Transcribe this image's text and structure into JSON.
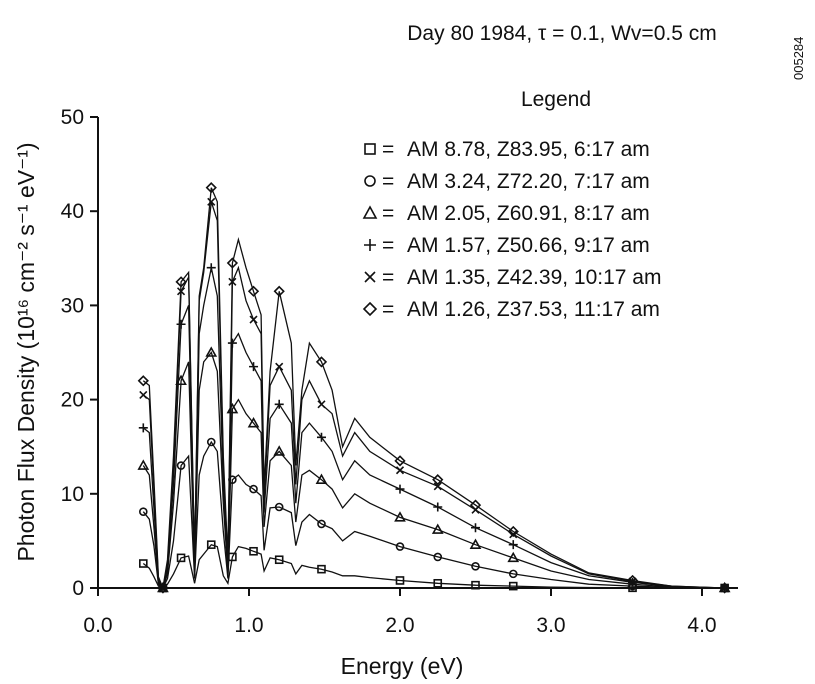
{
  "chart_data": {
    "type": "line",
    "title": "Day 80 1984, τ  =  0.1, Wv=0.5 cm",
    "xlabel": "Energy (eV)",
    "ylabel": "Photon Flux Density (10¹⁶ cm⁻² s⁻¹ eV⁻¹)",
    "xlim": [
      0,
      4.2
    ],
    "ylim": [
      0,
      50
    ],
    "x_ticks": [
      0.0,
      1.0,
      2.0,
      3.0,
      4.0
    ],
    "x_tick_labels": [
      "0.0",
      "1.0",
      "2.0",
      "3.0",
      "4.0"
    ],
    "y_ticks": [
      0,
      10,
      20,
      30,
      40,
      50
    ],
    "y_tick_labels": [
      "0",
      "10",
      "20",
      "30",
      "40",
      "50"
    ],
    "grid": false,
    "legend_title": "Legend",
    "legend_position": "top-right",
    "series": [
      {
        "name": "AM 8.78, Z83.95, 6:17 am",
        "marker": "square",
        "marker_symbol": "□",
        "x": [
          0.3,
          0.34,
          0.37,
          0.4,
          0.43,
          0.46,
          0.5,
          0.55,
          0.6,
          0.64,
          0.67,
          0.7,
          0.75,
          0.79,
          0.83,
          0.86,
          0.89,
          0.93,
          0.98,
          1.03,
          1.08,
          1.1,
          1.14,
          1.2,
          1.28,
          1.31,
          1.35,
          1.4,
          1.48,
          1.55,
          1.62,
          1.7,
          1.8,
          2.0,
          2.25,
          2.5,
          2.75,
          3.0,
          3.25,
          3.54,
          3.8,
          4.15
        ],
        "y": [
          2.6,
          2.1,
          1.2,
          0.2,
          0.0,
          0.4,
          1.5,
          3.2,
          3.4,
          0.5,
          3.0,
          3.6,
          4.6,
          4.4,
          1.3,
          0.5,
          3.3,
          4.4,
          4.2,
          3.9,
          3.6,
          1.8,
          3.2,
          3.0,
          2.6,
          1.5,
          2.4,
          2.2,
          2.0,
          1.7,
          1.3,
          1.3,
          1.1,
          0.8,
          0.5,
          0.3,
          0.2,
          0.1,
          0.05,
          0.02,
          0.01,
          0.0
        ]
      },
      {
        "name": "AM 3.24, Z72.20, 7:17 am",
        "marker": "circle",
        "marker_symbol": "○",
        "x": [
          0.3,
          0.34,
          0.37,
          0.4,
          0.43,
          0.46,
          0.5,
          0.55,
          0.6,
          0.64,
          0.67,
          0.7,
          0.75,
          0.79,
          0.83,
          0.86,
          0.89,
          0.93,
          0.98,
          1.03,
          1.08,
          1.1,
          1.14,
          1.2,
          1.28,
          1.31,
          1.35,
          1.4,
          1.48,
          1.55,
          1.62,
          1.7,
          1.8,
          2.0,
          2.25,
          2.5,
          2.75,
          3.0,
          3.25,
          3.54,
          3.8,
          4.15
        ],
        "y": [
          8.1,
          7.3,
          4.5,
          0.4,
          0.0,
          1.0,
          5.0,
          13.0,
          14.0,
          1.0,
          12.0,
          14.0,
          15.5,
          14.5,
          6.0,
          1.0,
          11.5,
          12.0,
          11.0,
          10.5,
          9.8,
          4.0,
          8.5,
          8.6,
          8.0,
          4.5,
          7.0,
          7.8,
          6.8,
          6.3,
          5.0,
          6.0,
          5.5,
          4.4,
          3.3,
          2.3,
          1.5,
          0.9,
          0.4,
          0.2,
          0.05,
          0.0
        ]
      },
      {
        "name": "AM 2.05, Z60.91, 8:17 am",
        "marker": "triangle",
        "marker_symbol": "△",
        "x": [
          0.3,
          0.34,
          0.37,
          0.4,
          0.43,
          0.46,
          0.5,
          0.55,
          0.6,
          0.64,
          0.67,
          0.7,
          0.75,
          0.79,
          0.83,
          0.86,
          0.89,
          0.93,
          0.98,
          1.03,
          1.08,
          1.1,
          1.14,
          1.2,
          1.28,
          1.31,
          1.35,
          1.4,
          1.48,
          1.55,
          1.62,
          1.7,
          1.8,
          2.0,
          2.25,
          2.5,
          2.75,
          3.0,
          3.25,
          3.54,
          3.8,
          4.15
        ],
        "y": [
          13.0,
          12.0,
          6.5,
          0.6,
          0.0,
          1.5,
          9.0,
          22.0,
          24.0,
          1.5,
          21.0,
          24.0,
          25.0,
          23.0,
          9.0,
          1.5,
          19.0,
          20.0,
          18.5,
          17.5,
          16.5,
          6.5,
          13.5,
          14.5,
          13.0,
          7.0,
          12.0,
          12.5,
          11.5,
          10.5,
          8.5,
          10.0,
          9.0,
          7.5,
          6.2,
          4.6,
          3.2,
          1.8,
          0.9,
          0.4,
          0.1,
          0.0
        ]
      },
      {
        "name": "AM 1.57, Z50.66, 9:17 am",
        "marker": "plus",
        "marker_symbol": "+",
        "x": [
          0.3,
          0.34,
          0.37,
          0.4,
          0.43,
          0.46,
          0.5,
          0.55,
          0.6,
          0.64,
          0.67,
          0.7,
          0.75,
          0.79,
          0.83,
          0.86,
          0.89,
          0.93,
          0.98,
          1.03,
          1.08,
          1.1,
          1.14,
          1.2,
          1.28,
          1.31,
          1.35,
          1.4,
          1.48,
          1.55,
          1.62,
          1.7,
          1.8,
          2.0,
          2.25,
          2.5,
          2.75,
          3.0,
          3.25,
          3.54,
          3.8,
          4.15
        ],
        "y": [
          17.0,
          16.5,
          8.5,
          0.8,
          0.0,
          2.0,
          11.0,
          28.0,
          30.0,
          2.0,
          27.0,
          30.0,
          34.0,
          31.0,
          11.0,
          2.0,
          26.0,
          27.0,
          25.0,
          23.5,
          22.0,
          8.0,
          18.0,
          19.5,
          17.5,
          9.0,
          16.5,
          17.5,
          16.0,
          14.5,
          11.5,
          13.5,
          12.0,
          10.5,
          8.6,
          6.4,
          4.6,
          2.7,
          1.3,
          0.6,
          0.15,
          0.0
        ]
      },
      {
        "name": "AM 1.35, Z42.39, 10:17 am",
        "marker": "cross",
        "marker_symbol": "×",
        "x": [
          0.3,
          0.34,
          0.37,
          0.4,
          0.43,
          0.46,
          0.5,
          0.55,
          0.6,
          0.64,
          0.67,
          0.7,
          0.75,
          0.79,
          0.83,
          0.86,
          0.89,
          0.93,
          0.98,
          1.03,
          1.08,
          1.1,
          1.14,
          1.2,
          1.28,
          1.31,
          1.35,
          1.4,
          1.48,
          1.55,
          1.62,
          1.7,
          1.8,
          2.0,
          2.25,
          2.5,
          2.75,
          3.0,
          3.25,
          3.54,
          3.8,
          4.15
        ],
        "y": [
          20.5,
          20.0,
          10.5,
          1.0,
          0.0,
          2.5,
          13.0,
          31.5,
          33.0,
          2.5,
          30.5,
          33.5,
          41.0,
          39.0,
          13.0,
          2.5,
          32.5,
          34.0,
          30.5,
          28.5,
          27.0,
          9.5,
          21.5,
          23.5,
          21.0,
          11.0,
          20.0,
          22.0,
          19.5,
          18.5,
          14.0,
          16.5,
          14.5,
          12.5,
          10.8,
          8.3,
          5.7,
          3.4,
          1.5,
          0.7,
          0.2,
          0.0
        ]
      },
      {
        "name": "AM 1.26, Z37.53, 11:17 am",
        "marker": "diamond",
        "marker_symbol": "◇",
        "x": [
          0.3,
          0.34,
          0.37,
          0.4,
          0.43,
          0.46,
          0.5,
          0.55,
          0.6,
          0.64,
          0.67,
          0.7,
          0.75,
          0.79,
          0.83,
          0.86,
          0.89,
          0.93,
          0.98,
          1.03,
          1.08,
          1.1,
          1.14,
          1.2,
          1.28,
          1.31,
          1.35,
          1.4,
          1.48,
          1.55,
          1.62,
          1.7,
          1.8,
          2.0,
          2.25,
          2.5,
          2.75,
          3.0,
          3.25,
          3.54,
          3.8,
          4.15
        ],
        "y": [
          22.0,
          21.5,
          11.5,
          1.2,
          0.0,
          3.0,
          14.0,
          32.5,
          33.5,
          3.0,
          31.0,
          34.0,
          42.5,
          41.0,
          14.0,
          3.0,
          34.5,
          37.0,
          34.0,
          31.5,
          29.0,
          10.5,
          23.0,
          31.5,
          26.0,
          13.0,
          21.0,
          26.0,
          24.0,
          21.0,
          15.0,
          18.0,
          16.0,
          13.5,
          11.5,
          8.8,
          6.0,
          3.6,
          1.6,
          0.8,
          0.2,
          0.0
        ]
      }
    ]
  },
  "figure_id": "005284"
}
